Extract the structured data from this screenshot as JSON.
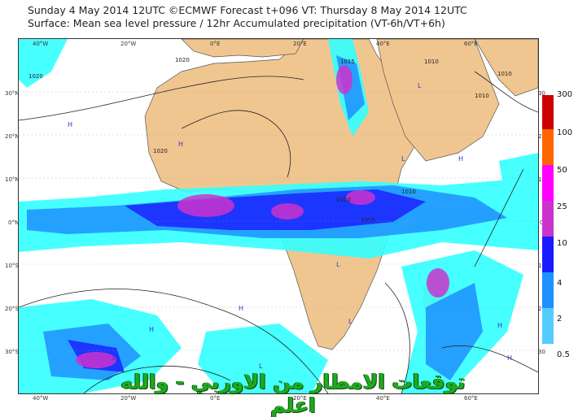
{
  "header": {
    "line1": "Sunday 4 May 2014 12UTC ©ECMWF Forecast t+096 VT: Thursday 8 May 2014 12UTC",
    "line2": "Surface: Mean sea level pressure / 12hr Accumulated precipitation (VT-6h/VT+6h)"
  },
  "axes": {
    "lon_top": [
      "40°W",
      "20°W",
      "0°E",
      "20°E",
      "40°E",
      "60°E"
    ],
    "lon_bottom": [
      "40°W",
      "20°W",
      "0°E",
      "20°E",
      "40°E",
      "60°E"
    ],
    "lat_left": [
      "30°N",
      "20°N",
      "10°N",
      "0°N",
      "10°S",
      "20°S",
      "30°S"
    ],
    "lat_right": [
      "30",
      "20",
      "10",
      "0",
      "10",
      "20",
      "30"
    ]
  },
  "isobars": {
    "labels": [
      "1020",
      "1020",
      "1020",
      "1015",
      "1010",
      "1010",
      "1010",
      "1010",
      "1015",
      "1010"
    ],
    "highs": [
      "H",
      "H",
      "H",
      "H",
      "H",
      "H",
      "H"
    ],
    "lows": [
      "L",
      "L",
      "L",
      "L",
      "L",
      "L"
    ]
  },
  "legend": {
    "title": "",
    "levels": [
      "300",
      "100",
      "50",
      "25",
      "10",
      "4",
      "2",
      "0.5"
    ],
    "colors": [
      "#cc0000",
      "#ff6600",
      "#ff00ff",
      "#cc33cc",
      "#1a1aff",
      "#1e90ff",
      "#55ccff",
      "#33ffff"
    ]
  },
  "colors": {
    "land": "#f0c690",
    "ocean": "#ffffff",
    "precip_light": "#33ffff",
    "precip_mid": "#1e90ff",
    "precip_heavy": "#1a1aff",
    "precip_veryheavy": "#cc33cc"
  },
  "watermark": "توقعات الامطار من الاوربي - والله اعلم"
}
